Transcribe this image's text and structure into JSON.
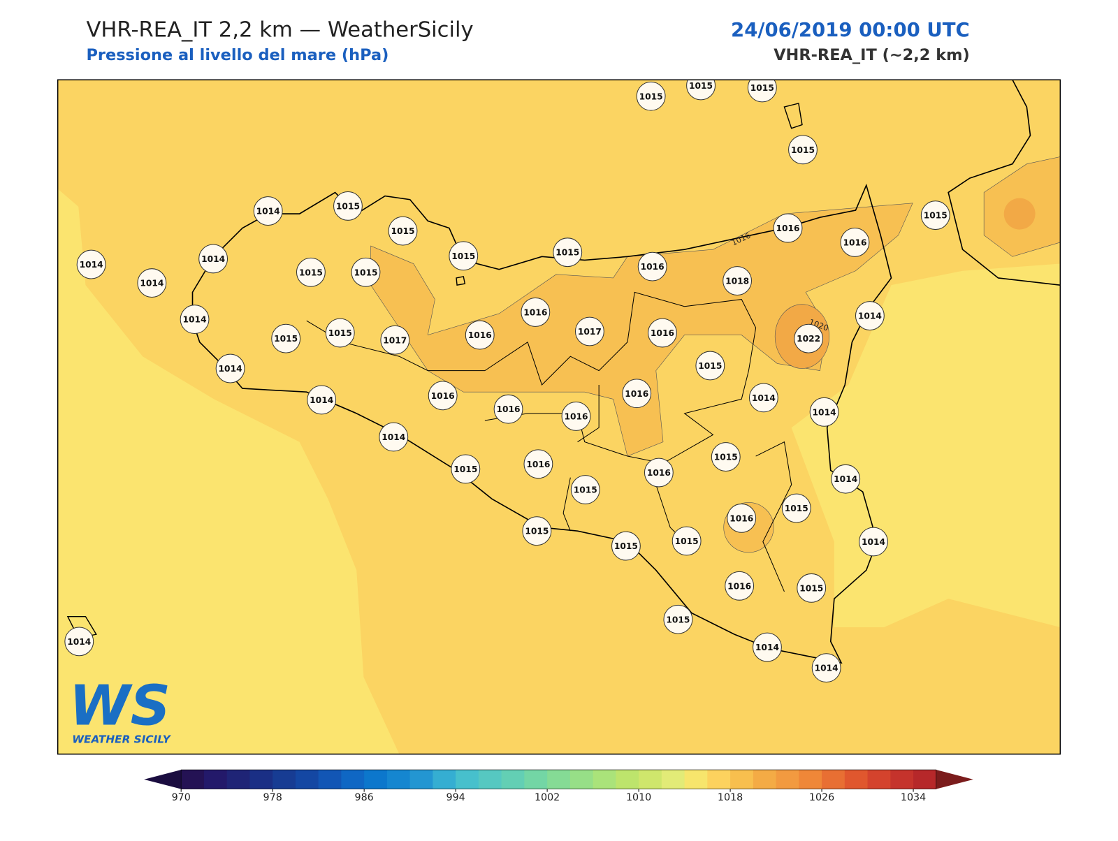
{
  "header": {
    "title": "VHR-REA_IT 2,2 km — WeatherSicily",
    "subtitle": "Pressione al livello del mare (hPa)",
    "date": "24/06/2019 00:00 UTC",
    "model": "VHR-REA_IT (~2,2 km)"
  },
  "stations": [
    1015,
    1015,
    1015,
    1015,
    1014,
    1015,
    1015,
    1014,
    1014,
    1014,
    1015,
    1015,
    1015,
    1015,
    1016,
    1016,
    1016,
    1015,
    1018,
    1014,
    1014,
    1015,
    1015,
    1017,
    1016,
    1016,
    1017,
    1016,
    1022,
    1015,
    1014,
    1014,
    1016,
    1016,
    1016,
    1016,
    1014,
    1014,
    1014,
    1015,
    1016,
    1015,
    1016,
    1015,
    1014,
    1016,
    1015,
    1015,
    1015,
    1015,
    1014,
    1016,
    1015,
    1015,
    1014,
    1014,
    1014
  ],
  "contour_labels": [
    "1016",
    "1020"
  ],
  "logo": {
    "mark": "WS",
    "name": "WEATHER SICILY"
  },
  "colorbar": {
    "lim": [
      970,
      1036
    ],
    "ticks": [
      970,
      978,
      986,
      994,
      1002,
      1010,
      1018,
      1026,
      1034
    ],
    "colors": [
      "#241254",
      "#23196a",
      "#1f2476",
      "#1a2f85",
      "#173c93",
      "#1447a3",
      "#1256b5",
      "#0f67c4",
      "#0c77cc",
      "#1586d0",
      "#2396d2",
      "#35aed2",
      "#47c0cc",
      "#56c8c1",
      "#63cfb4",
      "#73d6a5",
      "#85db95",
      "#97df87",
      "#aae37a",
      "#bde46c",
      "#cfe66c",
      "#e2eb77",
      "#f7e56c",
      "#fcd25e",
      "#f8bf4e",
      "#f4ab45",
      "#f29a40",
      "#ef8738",
      "#e86f33",
      "#e0572e",
      "#d4432d",
      "#c5332c",
      "#b6282a"
    ],
    "under": "#1b0d40",
    "over": "#7b1c1c"
  }
}
